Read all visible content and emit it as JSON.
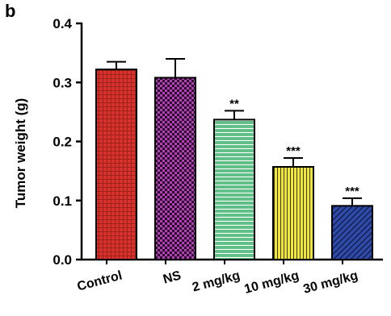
{
  "panel_label": "b",
  "chart_data": {
    "type": "bar",
    "categories": [
      "Control",
      "NS",
      "2 mg/kg",
      "10 mg/kg",
      "30 mg/kg"
    ],
    "values": [
      0.322,
      0.308,
      0.237,
      0.157,
      0.091
    ],
    "errors": [
      0.013,
      0.032,
      0.015,
      0.015,
      0.013
    ],
    "significance": [
      "",
      "",
      "**",
      "***",
      "***"
    ],
    "xlabel": "",
    "ylabel": "Tumor weight (g)",
    "ylim": [
      0,
      0.4
    ],
    "yticks": [
      0.0,
      0.1,
      0.2,
      0.3,
      0.4
    ],
    "ytick_labels": [
      "0.0",
      "0.1",
      "0.2",
      "0.3",
      "0.4"
    ],
    "grid": false,
    "bar_colors": [
      "#d9312b",
      "#b23fb5",
      "#5fbf86",
      "#f2e636",
      "#2f4ba8"
    ],
    "pattern_colors": [
      "#6b1410",
      "#2a0c2b",
      "#ffffff",
      "#3a3a10",
      "#0f1640"
    ],
    "patterns": [
      "crosshatch",
      "checker",
      "horizontal",
      "vertical",
      "diagonal"
    ]
  }
}
